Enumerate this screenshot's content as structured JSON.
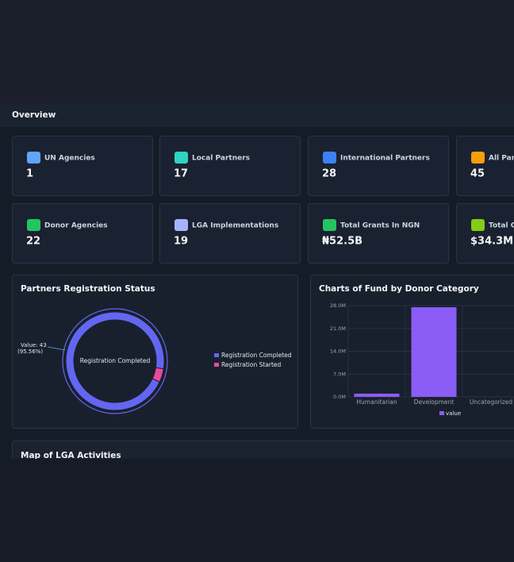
{
  "header": {
    "title": "Overview"
  },
  "cards": [
    {
      "label": "UN Agencies",
      "value": 1
    },
    {
      "label": "Local Partners",
      "value": 17
    },
    {
      "label": "International Partners",
      "value": 28
    },
    {
      "label": "All Part",
      "value": 45
    },
    {
      "label": "Donor Agencies",
      "value": 22
    },
    {
      "label": "LGA Implementations",
      "value": 19
    },
    {
      "label": "Total Grants In NGN",
      "value": "₦52.5B"
    },
    {
      "label": "Total Gr",
      "value": "$34.3M"
    }
  ],
  "chart_data": [
    {
      "type": "donut",
      "title": "Partners Registration Status",
      "categories": [
        "Registration Completed",
        "Registration Started"
      ],
      "values": [
        43,
        2
      ],
      "colors": [
        "#6366f1",
        "#ec4899"
      ],
      "center_label": "Registration Completed",
      "tooltip": {
        "value_text": "Value: 43",
        "percent_text": "(95.56%)"
      }
    },
    {
      "type": "bar",
      "title": "Charts of Fund by Donor Category",
      "categories": [
        "Humanitarian",
        "Development",
        "Uncategorized"
      ],
      "series": [
        {
          "name": "value",
          "color": "#8b5cf6",
          "values": [
            1000000,
            27500000,
            0
          ]
        }
      ],
      "ylim": [
        0,
        28000000
      ],
      "yticks": [
        {
          "value": 0,
          "label": "0.0M"
        },
        {
          "value": 7000000,
          "label": "7.0M"
        },
        {
          "value": 14000000,
          "label": "14.0M"
        },
        {
          "value": 21000000,
          "label": "21.0M"
        },
        {
          "value": 28000000,
          "label": "28.0M"
        }
      ],
      "grid": true
    }
  ],
  "map": {
    "title": "Map of LGA Activities"
  }
}
